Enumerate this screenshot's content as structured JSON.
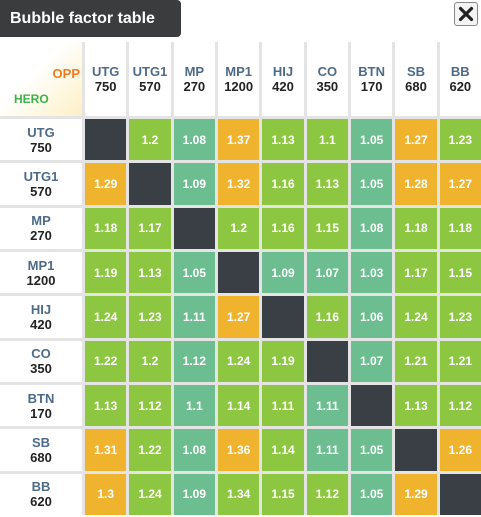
{
  "header": {
    "title": "Bubble factor table"
  },
  "table": {
    "corner": {
      "top": "OPP",
      "bottom": "HERO"
    },
    "palette": {
      "orange": "#f0b32e",
      "green": "#8dc641",
      "teal": "#6cbd8f",
      "empty": "#3a3f45"
    },
    "columns": [
      {
        "name": "UTG",
        "stack": 750
      },
      {
        "name": "UTG1",
        "stack": 570
      },
      {
        "name": "MP",
        "stack": 270
      },
      {
        "name": "MP1",
        "stack": 1200
      },
      {
        "name": "HIJ",
        "stack": 420
      },
      {
        "name": "CO",
        "stack": 350
      },
      {
        "name": "BTN",
        "stack": 170
      },
      {
        "name": "SB",
        "stack": 680
      },
      {
        "name": "BB",
        "stack": 620
      }
    ],
    "rows": [
      {
        "name": "UTG",
        "stack": 750,
        "values": [
          null,
          1.2,
          1.08,
          1.37,
          1.13,
          1.1,
          1.05,
          1.27,
          1.23
        ],
        "colors": [
          null,
          "green",
          "teal",
          "orange",
          "green",
          "green",
          "teal",
          "orange",
          "green"
        ]
      },
      {
        "name": "UTG1",
        "stack": 570,
        "values": [
          1.29,
          null,
          1.09,
          1.32,
          1.16,
          1.13,
          1.05,
          1.28,
          1.27
        ],
        "colors": [
          "orange",
          null,
          "teal",
          "orange",
          "green",
          "green",
          "teal",
          "orange",
          "orange"
        ]
      },
      {
        "name": "MP",
        "stack": 270,
        "values": [
          1.18,
          1.17,
          null,
          1.2,
          1.16,
          1.15,
          1.08,
          1.18,
          1.18
        ],
        "colors": [
          "green",
          "green",
          null,
          "green",
          "green",
          "green",
          "teal",
          "green",
          "green"
        ]
      },
      {
        "name": "MP1",
        "stack": 1200,
        "values": [
          1.19,
          1.13,
          1.05,
          null,
          1.09,
          1.07,
          1.03,
          1.17,
          1.15
        ],
        "colors": [
          "green",
          "green",
          "teal",
          null,
          "teal",
          "teal",
          "teal",
          "green",
          "green"
        ]
      },
      {
        "name": "HIJ",
        "stack": 420,
        "values": [
          1.24,
          1.23,
          1.11,
          1.27,
          null,
          1.16,
          1.06,
          1.24,
          1.23
        ],
        "colors": [
          "green",
          "green",
          "teal",
          "orange",
          null,
          "green",
          "teal",
          "green",
          "green"
        ]
      },
      {
        "name": "CO",
        "stack": 350,
        "values": [
          1.22,
          1.2,
          1.12,
          1.24,
          1.19,
          null,
          1.07,
          1.21,
          1.21
        ],
        "colors": [
          "green",
          "green",
          "teal",
          "green",
          "green",
          null,
          "teal",
          "green",
          "green"
        ]
      },
      {
        "name": "BTN",
        "stack": 170,
        "values": [
          1.13,
          1.12,
          1.1,
          1.14,
          1.11,
          1.11,
          null,
          1.13,
          1.12
        ],
        "colors": [
          "green",
          "green",
          "teal",
          "green",
          "green",
          "teal",
          null,
          "green",
          "green"
        ]
      },
      {
        "name": "SB",
        "stack": 680,
        "values": [
          1.31,
          1.22,
          1.08,
          1.36,
          1.14,
          1.11,
          1.05,
          null,
          1.26
        ],
        "colors": [
          "orange",
          "green",
          "teal",
          "orange",
          "green",
          "teal",
          "teal",
          null,
          "orange"
        ]
      },
      {
        "name": "BB",
        "stack": 620,
        "values": [
          1.3,
          1.24,
          1.09,
          1.34,
          1.15,
          1.12,
          1.05,
          1.29,
          null
        ],
        "colors": [
          "orange",
          "green",
          "teal",
          "green",
          "green",
          "green",
          "teal",
          "orange",
          null
        ]
      }
    ]
  }
}
